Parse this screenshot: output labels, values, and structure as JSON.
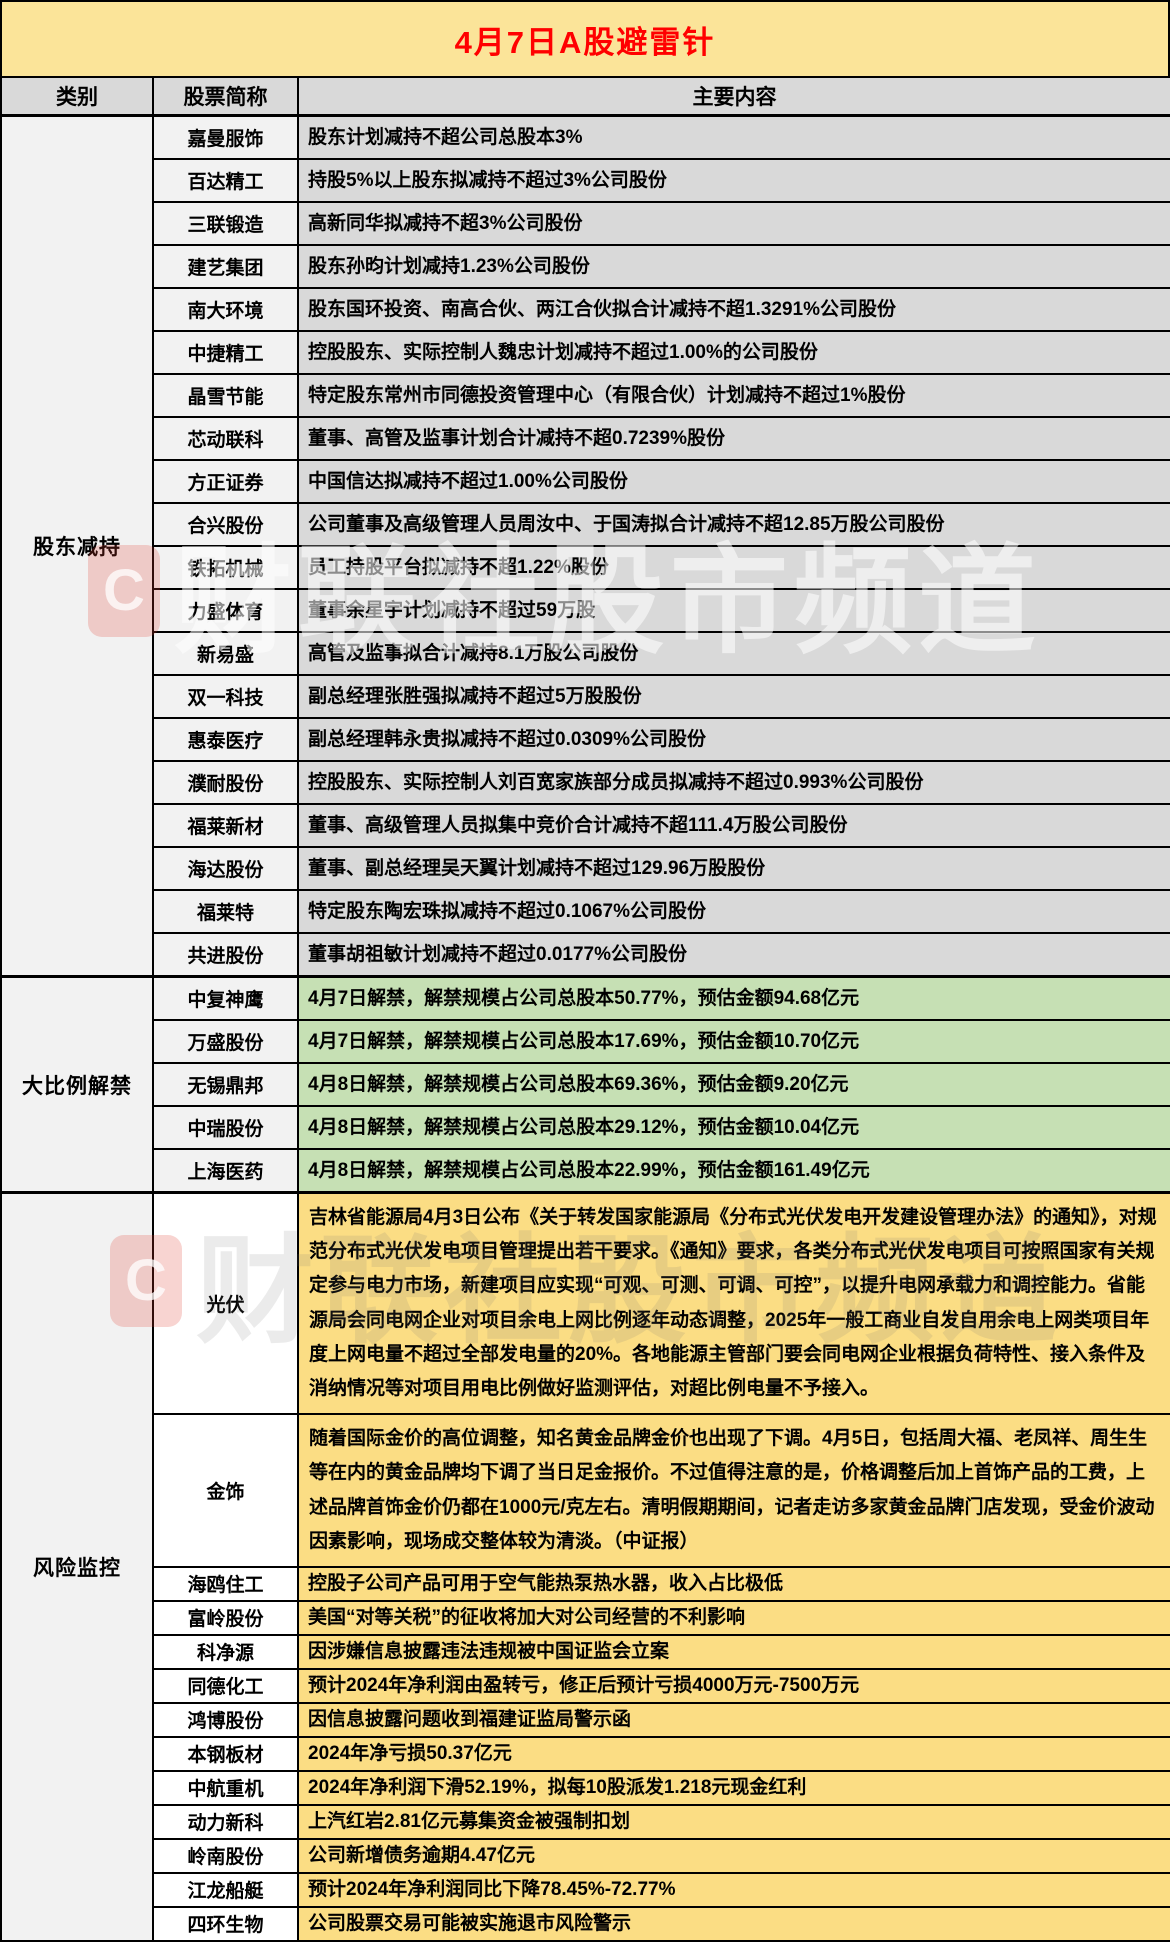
{
  "title": "4月7日A股避雷针",
  "columns": [
    "类别",
    "股票简称",
    "主要内容"
  ],
  "watermark": {
    "text": "财联社股市频道",
    "logo_letter": "C"
  },
  "colors": {
    "title_bg": "#FBE499",
    "title_text": "#FF0000",
    "header_bg": "#D9D9D9",
    "category_text": "#FF0000",
    "label_col_bg": "#F2F2F2",
    "gray_content_bg": "#D9D9D9",
    "green_content_bg": "#C6E0B4",
    "yellow_content_bg": "#FBDD84",
    "border": "#000000"
  },
  "sections": [
    {
      "category": "股东减持",
      "scheme": "gray",
      "rows": [
        {
          "stock": "嘉曼服饰",
          "content": "股东计划减持不超公司总股本3%"
        },
        {
          "stock": "百达精工",
          "content": "持股5%以上股东拟减持不超过3%公司股份"
        },
        {
          "stock": "三联锻造",
          "content": "高新同华拟减持不超3%公司股份"
        },
        {
          "stock": "建艺集团",
          "content": "股东孙昀计划减持1.23%公司股份"
        },
        {
          "stock": "南大环境",
          "content": "股东国环投资、南高合伙、两江合伙拟合计减持不超1.3291%公司股份"
        },
        {
          "stock": "中捷精工",
          "content": "控股股东、实际控制人魏忠计划减持不超过1.00%的公司股份"
        },
        {
          "stock": "晶雪节能",
          "content": "特定股东常州市同德投资管理中心（有限合伙）计划减持不超过1%股份"
        },
        {
          "stock": "芯动联科",
          "content": "董事、高管及监事计划合计减持不超0.7239%股份"
        },
        {
          "stock": "方正证券",
          "content": "中国信达拟减持不超过1.00%公司股份"
        },
        {
          "stock": "合兴股份",
          "content": "公司董事及高级管理人员周汝中、于国涛拟合计减持不超12.85万股公司股份"
        },
        {
          "stock": "铁拓机械",
          "content": "员工持股平台拟减持不超1.22%股份"
        },
        {
          "stock": "力盛体育",
          "content": "董事余星宇计划减持不超过59万股"
        },
        {
          "stock": "新易盛",
          "content": "高管及监事拟合计减持8.1万股公司股份"
        },
        {
          "stock": "双一科技",
          "content": "副总经理张胜强拟减持不超过5万股股份"
        },
        {
          "stock": "惠泰医疗",
          "content": "副总经理韩永贵拟减持不超过0.0309%公司股份"
        },
        {
          "stock": "濮耐股份",
          "content": "控股股东、实际控制人刘百宽家族部分成员拟减持不超过0.993%公司股份"
        },
        {
          "stock": "福莱新材",
          "content": "董事、高级管理人员拟集中竞价合计减持不超111.4万股公司股份"
        },
        {
          "stock": "海达股份",
          "content": "董事、副总经理吴天翼计划减持不超过129.96万股股份"
        },
        {
          "stock": "福莱特",
          "content": "特定股东陶宏珠拟减持不超过0.1067%公司股份"
        },
        {
          "stock": "共进股份",
          "content": "董事胡祖敏计划减持不超过0.0177%公司股份"
        }
      ]
    },
    {
      "category": "大比例解禁",
      "scheme": "green",
      "rows": [
        {
          "stock": "中复神鹰",
          "content": "4月7日解禁，解禁规模占公司总股本50.77%，预估金额94.68亿元"
        },
        {
          "stock": "万盛股份",
          "content": "4月7日解禁，解禁规模占公司总股本17.69%，预估金额10.70亿元"
        },
        {
          "stock": "无锡鼎邦",
          "content": "4月8日解禁，解禁规模占公司总股本69.36%，预估金额9.20亿元"
        },
        {
          "stock": "中瑞股份",
          "content": "4月8日解禁，解禁规模占公司总股本29.12%，预估金额10.04亿元"
        },
        {
          "stock": "上海医药",
          "content": "4月8日解禁，解禁规模占公司总股本22.99%，预估金额161.49亿元"
        }
      ]
    },
    {
      "category": "风险监控",
      "scheme": "yellow",
      "rows": [
        {
          "stock": "光伏",
          "content": "吉林省能源局4月3日公布《关于转发国家能源局《分布式光伏发电开发建设管理办法》的通知》，对规范分布式光伏发电项目管理提出若干要求。《通知》要求，各类分布式光伏发电项目可按照国家有关规定参与电力市场，新建项目应实现“可观、可测、可调、可控”，以提升电网承载力和调控能力。省能源局会同电网企业对项目余电上网比例逐年动态调整，2025年一般工商业自发自用余电上网类项目年度上网电量不超过全部发电量的20%。各地能源主管部门要会同电网企业根据负荷特性、接入条件及消纳情况等对项目用电比例做好监测评估，对超比例电量不予接入。"
        },
        {
          "stock": "金饰",
          "content": "随着国际金价的高位调整，知名黄金品牌金价也出现了下调。4月5日，包括周大福、老凤祥、周生生等在内的黄金品牌均下调了当日足金报价。不过值得注意的是，价格调整后加上首饰产品的工费，上述品牌首饰金价仍都在1000元/克左右。清明假期期间，记者走访多家黄金品牌门店发现，受金价波动因素影响，现场成交整体较为清淡。（中证报）"
        },
        {
          "stock": "海鸥住工",
          "content": "控股子公司产品可用于空气能热泵热水器，收入占比极低"
        },
        {
          "stock": "富岭股份",
          "content": "美国“对等关税”的征收将加大对公司经营的不利影响"
        },
        {
          "stock": "科净源",
          "content": "因涉嫌信息披露违法违规被中国证监会立案"
        },
        {
          "stock": "同德化工",
          "content": "预计2024年净利润由盈转亏，修正后预计亏损4000万元-7500万元"
        },
        {
          "stock": "鸿博股份",
          "content": "因信息披露问题收到福建证监局警示函"
        },
        {
          "stock": "本钢板材",
          "content": "2024年净亏损50.37亿元"
        },
        {
          "stock": "中航重机",
          "content": "2024年净利润下滑52.19%，拟每10股派发1.218元现金红利"
        },
        {
          "stock": "动力新科",
          "content": "上汽红岩2.81亿元募集资金被强制扣划"
        },
        {
          "stock": "岭南股份",
          "content": "公司新增债务逾期4.47亿元"
        },
        {
          "stock": "江龙船艇",
          "content": "预计2024年净利润同比下降78.45%-72.77%"
        },
        {
          "stock": "四环生物",
          "content": "公司股票交易可能被实施退市风险警示"
        }
      ]
    }
  ]
}
